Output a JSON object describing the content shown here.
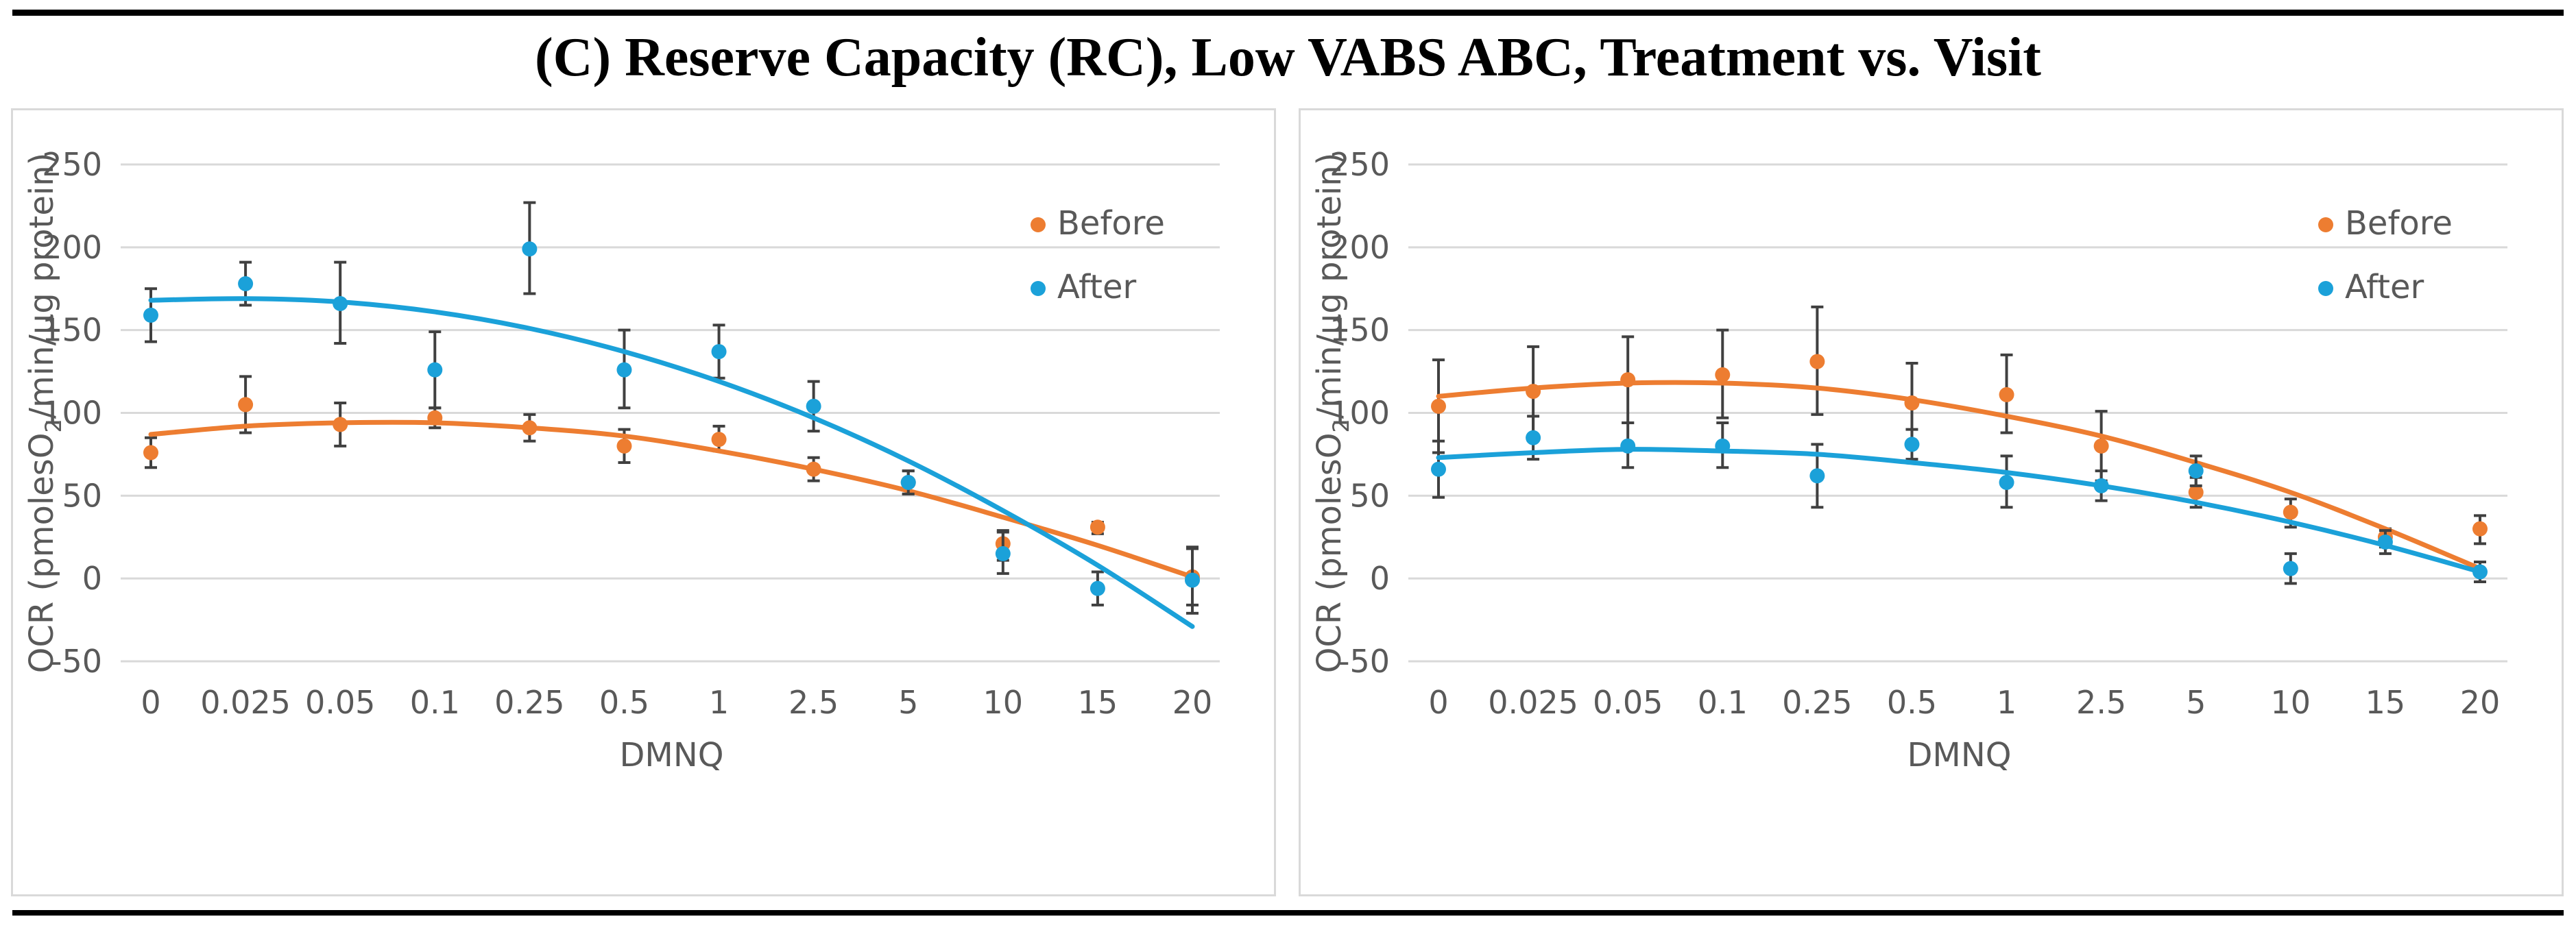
{
  "title": "(C) Reserve Capacity (RC), Low VABS ABC, Treatment vs. Visit",
  "colors": {
    "before": "#ED7D31",
    "after": "#1BA1D9",
    "error_bar": "#404040",
    "grid": "#D9D9D9",
    "text": "#595959"
  },
  "chart_data": [
    {
      "type": "scatter",
      "title": "",
      "xlabel": "DMNQ",
      "ylabel": "OCR (pmolesO2/min/µg protein)",
      "ylabel_parts": {
        "pre": "OCR (pmolesO",
        "sub": "2",
        "post": "/min/µg protein)"
      },
      "categories": [
        "0",
        "0.025",
        "0.05",
        "0.1",
        "0.25",
        "0.5",
        "1",
        "2.5",
        "5",
        "10",
        "15",
        "20"
      ],
      "ylim": [
        -50,
        250
      ],
      "yticks": [
        "250",
        "200",
        "150",
        "100",
        "50",
        "0",
        "-50"
      ],
      "grid": true,
      "legend": "top-right",
      "series": [
        {
          "name": "Before",
          "color": "#ED7D31",
          "values": [
            76,
            105,
            93,
            97,
            91,
            80,
            84,
            66,
            58,
            21,
            31,
            1
          ],
          "error_low": [
            67,
            88,
            80,
            91,
            83,
            70,
            77,
            59,
            51,
            11,
            27,
            -16
          ],
          "error_high": [
            85,
            122,
            106,
            103,
            99,
            90,
            92,
            73,
            65,
            29,
            34,
            18
          ],
          "trendline": [
            87,
            92,
            94,
            94,
            91,
            86,
            77,
            66,
            53,
            37,
            20,
            1
          ]
        },
        {
          "name": "After",
          "color": "#1BA1D9",
          "values": [
            159,
            178,
            166,
            126,
            199,
            126,
            137,
            104,
            58,
            15,
            -6,
            -1
          ],
          "error_low": [
            143,
            165,
            142,
            103,
            172,
            103,
            121,
            89,
            51,
            3,
            -16,
            -21
          ],
          "error_high": [
            175,
            191,
            191,
            149,
            227,
            150,
            153,
            119,
            65,
            28,
            4,
            19
          ],
          "trendline": [
            168,
            169,
            167,
            161,
            151,
            137,
            119,
            97,
            71,
            41,
            8,
            -29
          ]
        }
      ]
    },
    {
      "type": "scatter",
      "title": "",
      "xlabel": "DMNQ",
      "ylabel": "OCR (pmolesO2/min/µg protein)",
      "ylabel_parts": {
        "pre": "OCR (pmolesO",
        "sub": "2",
        "post": "/min/µg protein)"
      },
      "categories": [
        "0",
        "0.025",
        "0.05",
        "0.1",
        "0.25",
        "0.5",
        "1",
        "2.5",
        "5",
        "10",
        "15",
        "20"
      ],
      "ylim": [
        -50,
        250
      ],
      "yticks": [
        "250",
        "200",
        "150",
        "100",
        "50",
        "0",
        "-50"
      ],
      "grid": true,
      "legend": "top-right",
      "series": [
        {
          "name": "Before",
          "color": "#ED7D31",
          "values": [
            104,
            113,
            120,
            123,
            131,
            106,
            111,
            80,
            52,
            40,
            25,
            30
          ],
          "error_low": [
            76,
            86,
            94,
            97,
            99,
            82,
            88,
            59,
            43,
            31,
            19,
            21
          ],
          "error_high": [
            132,
            140,
            146,
            150,
            164,
            130,
            135,
            101,
            61,
            48,
            30,
            38
          ],
          "trendline": [
            110,
            115,
            118,
            118,
            115,
            108,
            98,
            86,
            70,
            52,
            30,
            6
          ]
        },
        {
          "name": "After",
          "color": "#1BA1D9",
          "values": [
            66,
            85,
            80,
            80,
            62,
            81,
            58,
            56,
            65,
            6,
            22,
            4
          ],
          "error_low": [
            49,
            72,
            67,
            67,
            43,
            72,
            43,
            47,
            56,
            -3,
            15,
            -2
          ],
          "error_high": [
            83,
            98,
            94,
            94,
            81,
            90,
            74,
            65,
            74,
            15,
            29,
            10
          ],
          "trendline": [
            73,
            76,
            78,
            77,
            75,
            70,
            64,
            56,
            46,
            34,
            20,
            4
          ]
        }
      ]
    }
  ]
}
